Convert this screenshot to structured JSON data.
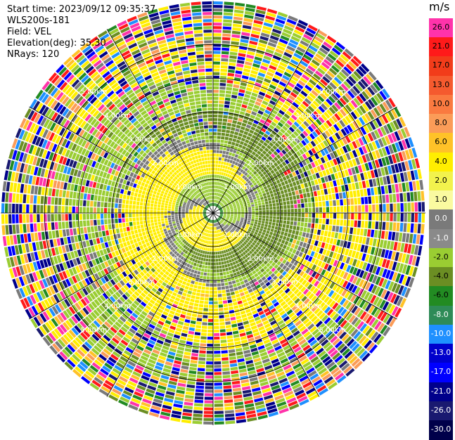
{
  "header": {
    "start_time": "Start time: 2023/09/12 09:35:37",
    "instrument": "WLS200s-181",
    "field": "Field: VEL",
    "elevation": "Elevation(deg): 35.30",
    "nrays": "NRays: 120"
  },
  "chart_data": {
    "type": "heatmap",
    "projection": "polar-ppi",
    "field": "VEL",
    "nrays": 120,
    "elevation_deg": 35.3,
    "range_rings_km": [
      1.0,
      2.0,
      3.0,
      4.0,
      5.0
    ],
    "range_ring_labels": [
      "1.00km",
      "2.00km",
      "3.00km",
      "4.00km",
      "5.00km"
    ],
    "azimuth_spokes_deg": [
      0,
      30,
      60,
      90,
      120,
      150,
      180,
      210,
      240,
      270,
      300,
      330
    ],
    "colorbar": {
      "unit": "m/s",
      "ticks": [
        "26.0",
        "21.0",
        "17.0",
        "13.0",
        "10.0",
        "8.0",
        "6.0",
        "4.0",
        "2.0",
        "1.0",
        "0.0",
        "-1.0",
        "-2.0",
        "-4.0",
        "-6.0",
        "-8.0",
        "-10.0",
        "-13.0",
        "-17.0",
        "-21.0",
        "-26.0",
        "-30.0"
      ],
      "colors": [
        "#ff33aa",
        "#ff1a1a",
        "#f23c1a",
        "#f55a2e",
        "#fa7a40",
        "#fb9c58",
        "#ffc228",
        "#ffee00",
        "#f2f24d",
        "#fafaa0",
        "#7a7a7a",
        "#8a8a8a",
        "#9acd32",
        "#6b8e23",
        "#228b22",
        "#2e8b57",
        "#1e90ff",
        "#0000cd",
        "#0000ff",
        "#00008b",
        "#191970",
        "#00004a"
      ]
    }
  }
}
